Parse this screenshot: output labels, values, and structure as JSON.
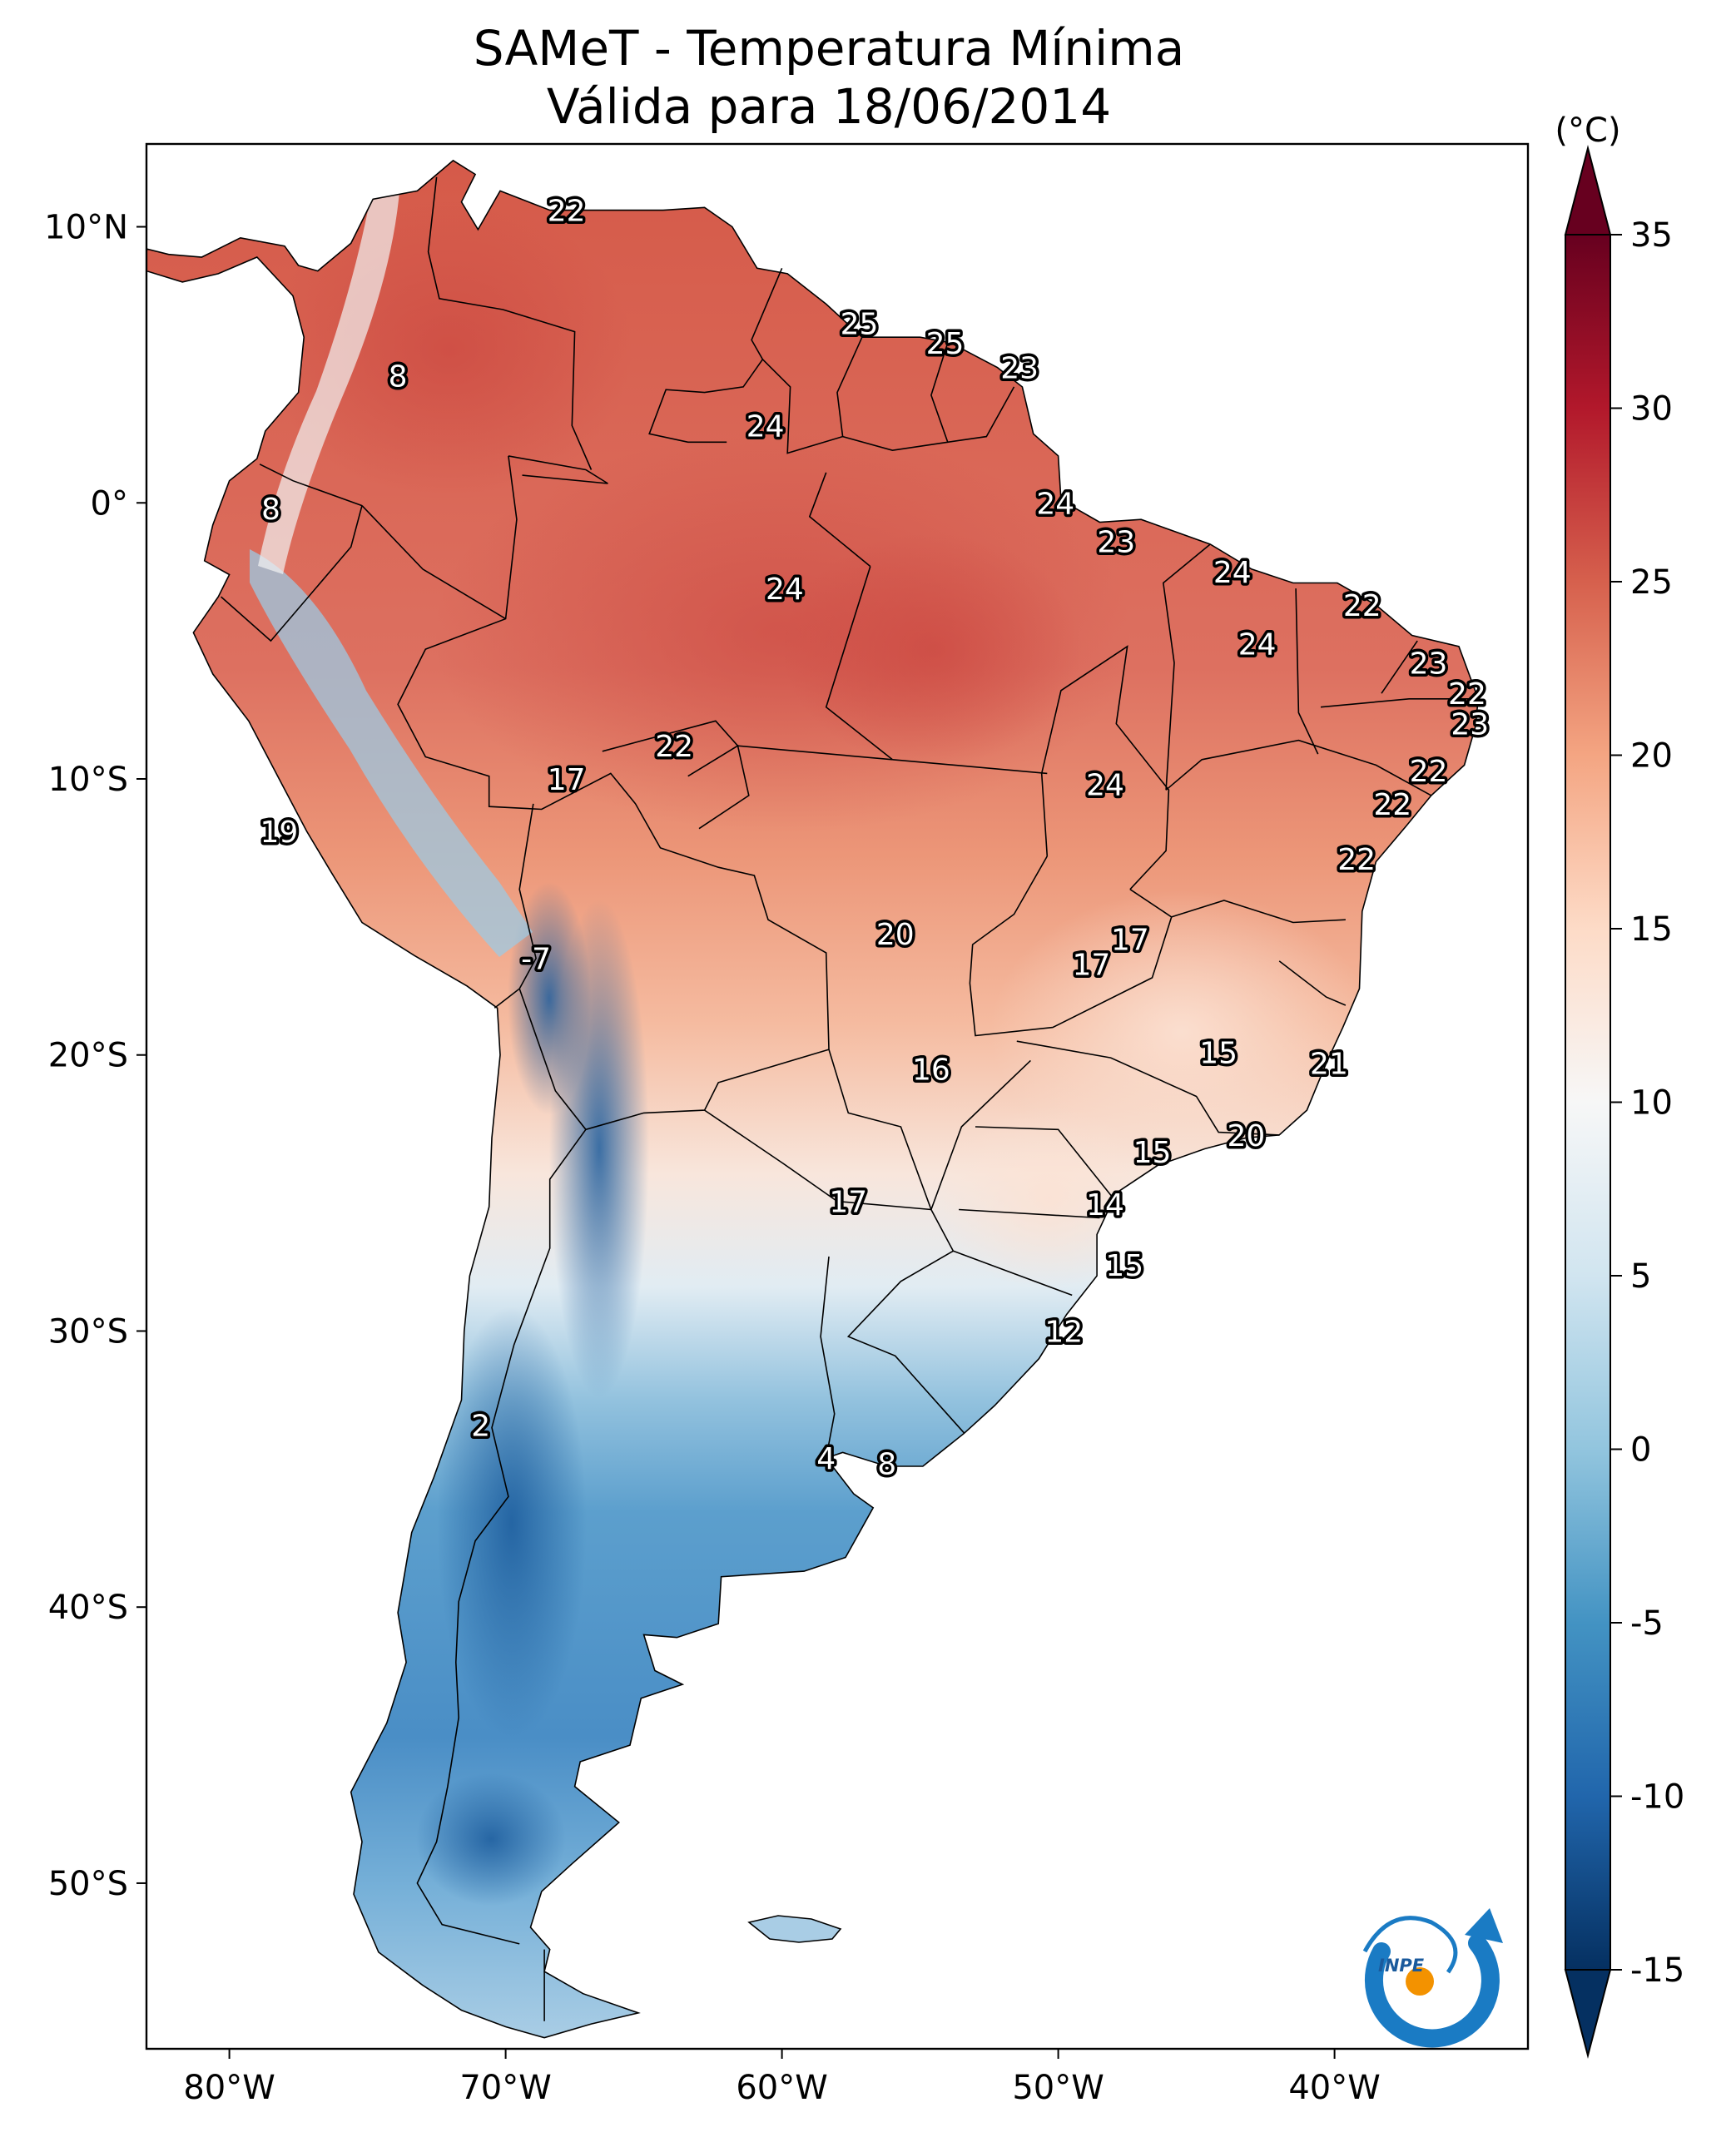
{
  "title": {
    "line1": "SAMeT - Temperatura Mínima",
    "line2": "Válida para 18/06/2014"
  },
  "map": {
    "lon_range": [
      -83,
      -33
    ],
    "lat_range": [
      -56,
      13
    ],
    "lon_ticks": [
      {
        "value": -80,
        "label": "80°W"
      },
      {
        "value": -70,
        "label": "70°W"
      },
      {
        "value": -60,
        "label": "60°W"
      },
      {
        "value": -50,
        "label": "50°W"
      },
      {
        "value": -40,
        "label": "40°W"
      }
    ],
    "lat_ticks": [
      {
        "value": 10,
        "label": "10°N"
      },
      {
        "value": 0,
        "label": "0°"
      },
      {
        "value": -10,
        "label": "10°S"
      },
      {
        "value": -20,
        "label": "20°S"
      },
      {
        "value": -30,
        "label": "30°S"
      },
      {
        "value": -40,
        "label": "40°S"
      },
      {
        "value": -50,
        "label": "50°S"
      }
    ]
  },
  "stations": [
    {
      "lon": -67.8,
      "lat": 10.6,
      "value": "22"
    },
    {
      "lon": -57.2,
      "lat": 6.5,
      "value": "25"
    },
    {
      "lon": -54.1,
      "lat": 5.8,
      "value": "25"
    },
    {
      "lon": -51.4,
      "lat": 4.9,
      "value": "23"
    },
    {
      "lon": -73.9,
      "lat": 4.6,
      "value": "8"
    },
    {
      "lon": -60.6,
      "lat": 2.8,
      "value": "24"
    },
    {
      "lon": -78.5,
      "lat": -0.2,
      "value": "8"
    },
    {
      "lon": -50.1,
      "lat": 0.0,
      "value": "24"
    },
    {
      "lon": -47.9,
      "lat": -1.4,
      "value": "23"
    },
    {
      "lon": -43.7,
      "lat": -2.5,
      "value": "24"
    },
    {
      "lon": -59.9,
      "lat": -3.1,
      "value": "24"
    },
    {
      "lon": -39.0,
      "lat": -3.7,
      "value": "22"
    },
    {
      "lon": -42.8,
      "lat": -5.1,
      "value": "24"
    },
    {
      "lon": -36.6,
      "lat": -5.8,
      "value": "23"
    },
    {
      "lon": -35.2,
      "lat": -6.9,
      "value": "22"
    },
    {
      "lon": -35.1,
      "lat": -8.0,
      "value": "23"
    },
    {
      "lon": -63.9,
      "lat": -8.8,
      "value": "22"
    },
    {
      "lon": -36.6,
      "lat": -9.7,
      "value": "22"
    },
    {
      "lon": -67.8,
      "lat": -10.0,
      "value": "17"
    },
    {
      "lon": -48.3,
      "lat": -10.2,
      "value": "24"
    },
    {
      "lon": -37.9,
      "lat": -10.9,
      "value": "22"
    },
    {
      "lon": -78.2,
      "lat": -11.9,
      "value": "19"
    },
    {
      "lon": -39.2,
      "lat": -12.9,
      "value": "22"
    },
    {
      "lon": -68.9,
      "lat": -16.5,
      "value": "-7"
    },
    {
      "lon": -47.4,
      "lat": -15.8,
      "value": "17"
    },
    {
      "lon": -55.9,
      "lat": -15.6,
      "value": "20"
    },
    {
      "lon": -48.8,
      "lat": -16.7,
      "value": "17"
    },
    {
      "lon": -44.2,
      "lat": -19.9,
      "value": "15"
    },
    {
      "lon": -54.6,
      "lat": -20.5,
      "value": "16"
    },
    {
      "lon": -40.2,
      "lat": -20.3,
      "value": "21"
    },
    {
      "lon": -43.2,
      "lat": -22.9,
      "value": "20"
    },
    {
      "lon": -46.6,
      "lat": -23.5,
      "value": "15"
    },
    {
      "lon": -57.6,
      "lat": -25.3,
      "value": "17"
    },
    {
      "lon": -48.3,
      "lat": -25.4,
      "value": "14"
    },
    {
      "lon": -47.6,
      "lat": -27.6,
      "value": "15"
    },
    {
      "lon": -49.8,
      "lat": -30.0,
      "value": "12"
    },
    {
      "lon": -70.9,
      "lat": -33.4,
      "value": "2"
    },
    {
      "lon": -58.4,
      "lat": -34.6,
      "value": "4"
    },
    {
      "lon": -56.2,
      "lat": -34.8,
      "value": "8"
    }
  ],
  "colorbar": {
    "unit": "(°C)",
    "min": -15,
    "max": 35,
    "ticks": [
      {
        "value": 35,
        "label": "35"
      },
      {
        "value": 30,
        "label": "30"
      },
      {
        "value": 25,
        "label": "25"
      },
      {
        "value": 20,
        "label": "20"
      },
      {
        "value": 15,
        "label": "15"
      },
      {
        "value": 10,
        "label": "10"
      },
      {
        "value": 5,
        "label": "5"
      },
      {
        "value": 0,
        "label": "0"
      },
      {
        "value": -5,
        "label": "-5"
      },
      {
        "value": -10,
        "label": "-10"
      },
      {
        "value": -15,
        "label": "-15"
      }
    ],
    "colors": [
      "#053061",
      "#2166ac",
      "#4393c3",
      "#92c5de",
      "#d1e5f0",
      "#f7f7f7",
      "#fddbc7",
      "#f4a582",
      "#d6604d",
      "#b2182b",
      "#67001f"
    ]
  },
  "logo": {
    "text": "INPE",
    "ring_color": "#1a7bc4",
    "dot_color": "#f39200"
  }
}
